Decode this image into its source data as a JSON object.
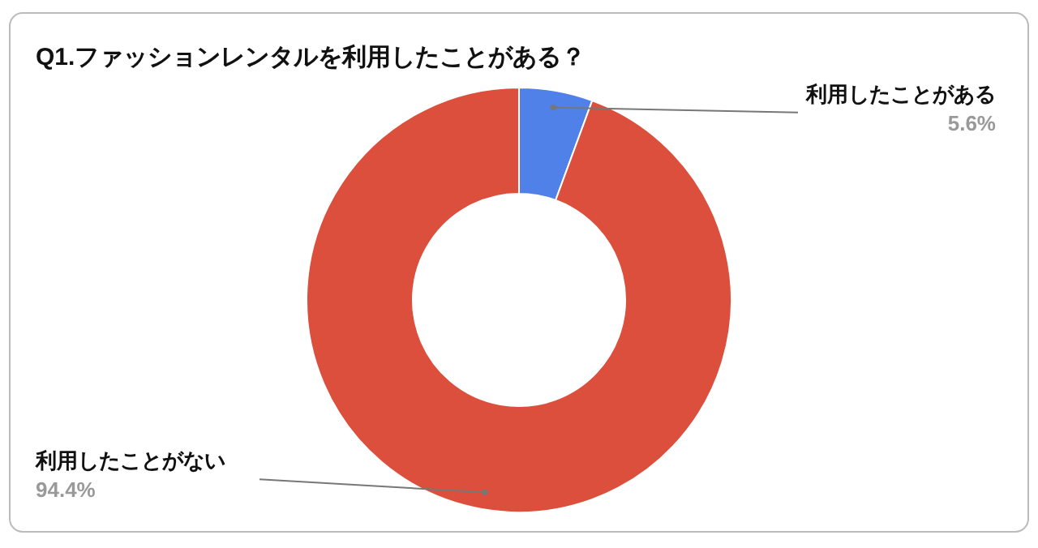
{
  "chart_data": {
    "type": "donut",
    "title": "Q1.ファッションレンタルを利用したことがある？",
    "categories": [
      "利用したことがある",
      "利用したことがない"
    ],
    "values": [
      5.6,
      94.4
    ],
    "colors": [
      "#4f81e8",
      "#dc4f3c"
    ],
    "value_labels": [
      "5.6%",
      "94.4%"
    ]
  }
}
